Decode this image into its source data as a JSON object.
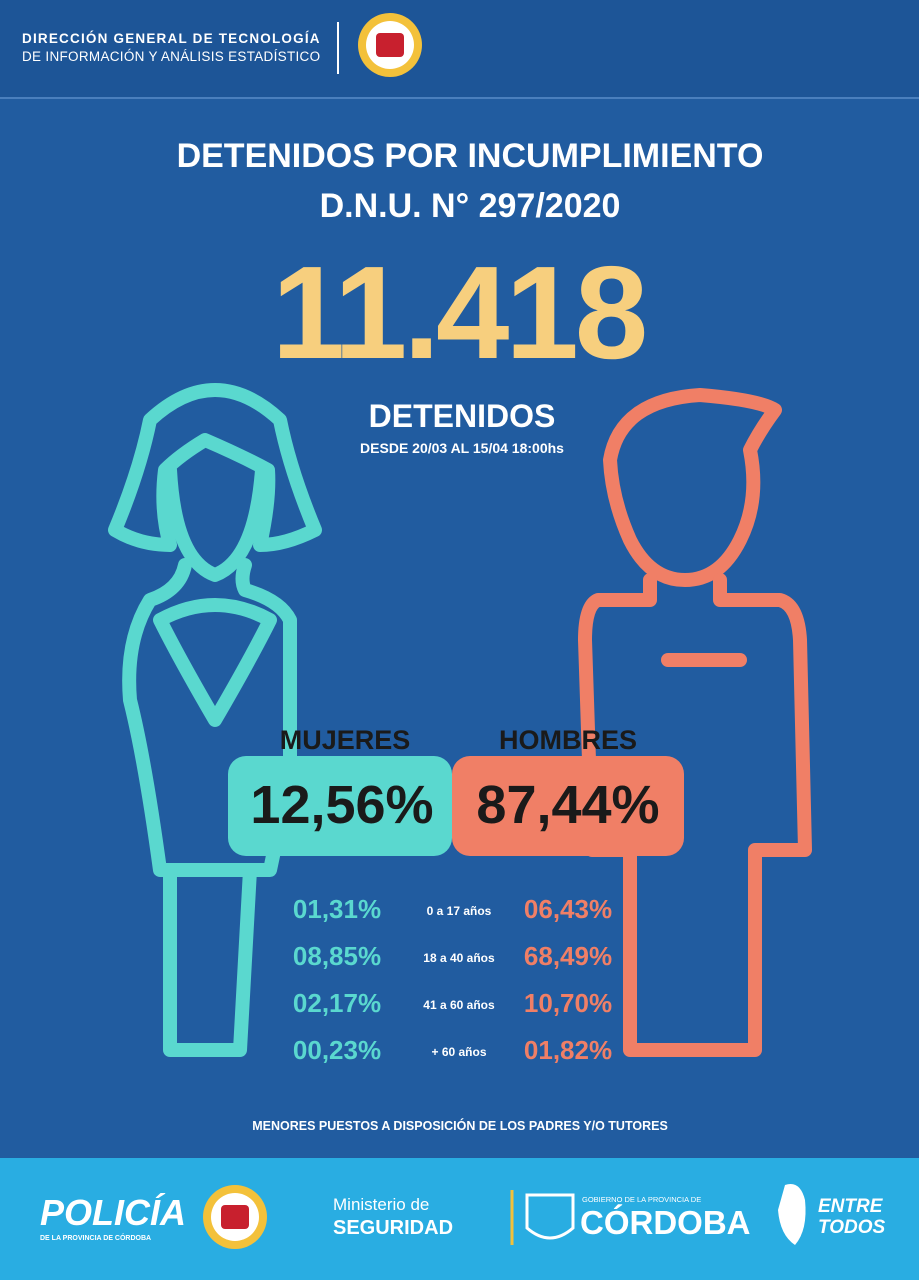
{
  "header": {
    "line1": "DIRECCIÓN GENERAL DE TECNOLOGÍA",
    "line2": "DE INFORMACIÓN Y ANÁLISIS ESTADÍSTICO"
  },
  "title": {
    "line1": "DETENIDOS POR INCUMPLIMIENTO",
    "line2": "D.N.U. N° 297/2020"
  },
  "total": "11.418",
  "total_label": "DETENIDOS",
  "period": "DESDE 20/03 AL 15/04 18:00hs",
  "women": {
    "label": "MUJERES",
    "percent": "12,56%"
  },
  "men": {
    "label": "HOMBRES",
    "percent": "87,44%"
  },
  "age_rows": [
    {
      "women": "01,31%",
      "range": "0 a 17 años",
      "men": "06,43%"
    },
    {
      "women": "08,85%",
      "range": "18 a 40 años",
      "men": "68,49%"
    },
    {
      "women": "02,17%",
      "range": "41 a 60 años",
      "men": "10,70%"
    },
    {
      "women": "00,23%",
      "range": "+ 60 años",
      "men": "01,82%"
    }
  ],
  "note": "MENORES PUESTOS A DISPOSICIÓN DE LOS PADRES Y/O TUTORES",
  "footer": {
    "policia": "POLICÍA",
    "policia_sub": "DE LA PROVINCIA DE CÓRDOBA",
    "ministerio": "Ministerio de",
    "seguridad": "SEGURIDAD",
    "gobierno": "GOBIERNO DE LA PROVINCIA DE",
    "cordoba": "CÓRDOBA",
    "entre": "ENTRE",
    "todos": "TODOS"
  }
}
